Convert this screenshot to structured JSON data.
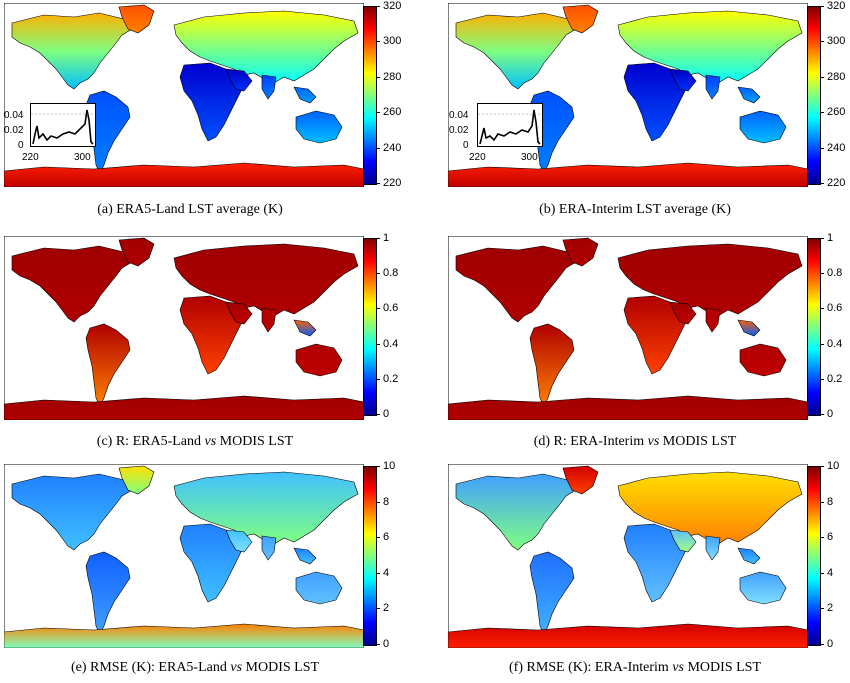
{
  "panels": [
    {
      "id": "a",
      "caption_prefix": "(a) ERA5-Land LST average (K)",
      "caption_mid": "",
      "caption_suffix": "",
      "colorbar": {
        "ticks": [
          "320",
          "300",
          "280",
          "260",
          "240",
          "220"
        ],
        "min": 220,
        "max": 320
      },
      "field": "lst",
      "inset": {
        "y_ticks": [
          "0.04",
          "0.02",
          "0"
        ],
        "x_ticks": [
          "220",
          "300"
        ]
      }
    },
    {
      "id": "b",
      "caption_prefix": "(b) ERA-Interim LST average (K)",
      "caption_mid": "",
      "caption_suffix": "",
      "colorbar": {
        "ticks": [
          "320",
          "300",
          "280",
          "260",
          "240",
          "220"
        ],
        "min": 220,
        "max": 320
      },
      "field": "lst",
      "inset": {
        "y_ticks": [
          "0.04",
          "0.02",
          "0"
        ],
        "x_ticks": [
          "220",
          "300"
        ]
      }
    },
    {
      "id": "c",
      "caption_prefix": "(c) R: ERA5-Land ",
      "caption_mid": "vs",
      "caption_suffix": " MODIS LST",
      "colorbar": {
        "ticks": [
          "1",
          "0.8",
          "0.6",
          "0.4",
          "0.2",
          "0"
        ],
        "min": 0,
        "max": 1
      },
      "field": "r"
    },
    {
      "id": "d",
      "caption_prefix": "(d) R: ERA-Interim ",
      "caption_mid": "vs",
      "caption_suffix": " MODIS LST",
      "colorbar": {
        "ticks": [
          "1",
          "0.8",
          "0.6",
          "0.4",
          "0.2",
          "0"
        ],
        "min": 0,
        "max": 1
      },
      "field": "r"
    },
    {
      "id": "e",
      "caption_prefix": "(e) RMSE (K): ERA5-Land ",
      "caption_mid": "vs",
      "caption_suffix": " MODIS LST",
      "colorbar": {
        "ticks": [
          "10",
          "8",
          "6",
          "4",
          "2",
          "0"
        ],
        "min": 0,
        "max": 10
      },
      "field": "rmse_land"
    },
    {
      "id": "f",
      "caption_prefix": "(f) RMSE (K): ERA-Interim ",
      "caption_mid": "vs",
      "caption_suffix": " MODIS LST",
      "colorbar": {
        "ticks": [
          "10",
          "8",
          "6",
          "4",
          "2",
          "0"
        ],
        "min": 0,
        "max": 10
      },
      "field": "rmse_interim"
    }
  ],
  "colors": {
    "jet": [
      "#00008f",
      "#0000ff",
      "#0080ff",
      "#00ffff",
      "#80ff80",
      "#ffff00",
      "#ff8000",
      "#ff0000",
      "#800000"
    ]
  }
}
